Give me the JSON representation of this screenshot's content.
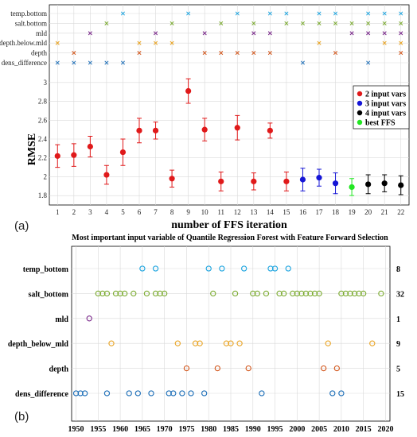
{
  "colors": {
    "red": "#e0191a",
    "blue": "#1515d6",
    "black": "#000000",
    "green": "#22e622",
    "temp_bottom": "#1ea5e0",
    "salt_bottom": "#7aaa2e",
    "mld": "#7b2a8c",
    "depth_below_mld": "#e9a424",
    "depth": "#d25317",
    "dens_difference": "#1e6fb8"
  },
  "panel_labels": {
    "a": "(a)",
    "b": "(b)"
  },
  "chart_data": [
    {
      "type": "scatter",
      "subtype": "errorbar",
      "title": "",
      "xlabel": "number of FFS iteration",
      "ylabel": "RMSE",
      "xlim": [
        0.5,
        22.5
      ],
      "ylim": [
        1.7,
        3.1
      ],
      "xticks": [
        1,
        2,
        3,
        4,
        5,
        6,
        7,
        8,
        9,
        10,
        11,
        12,
        13,
        14,
        15,
        16,
        17,
        18,
        19,
        20,
        21,
        22
      ],
      "yticks": [
        "1.8",
        "2",
        "2.2",
        "2.4",
        "2.6",
        "2.8",
        "3"
      ],
      "grid": true,
      "legend_position": "right",
      "legend": [
        {
          "label": "2 input vars",
          "color_key": "red"
        },
        {
          "label": "3 input vars",
          "color_key": "blue"
        },
        {
          "label": "4 input vars",
          "color_key": "black"
        },
        {
          "label": "best FFS",
          "color_key": "green"
        }
      ],
      "points": [
        {
          "x": 1,
          "y": 2.22,
          "err": 0.12,
          "color_key": "red"
        },
        {
          "x": 2,
          "y": 2.23,
          "err": 0.12,
          "color_key": "red"
        },
        {
          "x": 3,
          "y": 2.32,
          "err": 0.11,
          "color_key": "red"
        },
        {
          "x": 4,
          "y": 2.02,
          "err": 0.1,
          "color_key": "red"
        },
        {
          "x": 5,
          "y": 2.26,
          "err": 0.14,
          "color_key": "red"
        },
        {
          "x": 6,
          "y": 2.49,
          "err": 0.13,
          "color_key": "red"
        },
        {
          "x": 7,
          "y": 2.49,
          "err": 0.09,
          "color_key": "red"
        },
        {
          "x": 8,
          "y": 1.98,
          "err": 0.09,
          "color_key": "red"
        },
        {
          "x": 9,
          "y": 2.91,
          "err": 0.13,
          "color_key": "red"
        },
        {
          "x": 10,
          "y": 2.5,
          "err": 0.12,
          "color_key": "red"
        },
        {
          "x": 11,
          "y": 1.95,
          "err": 0.1,
          "color_key": "red"
        },
        {
          "x": 12,
          "y": 2.52,
          "err": 0.13,
          "color_key": "red"
        },
        {
          "x": 13,
          "y": 1.95,
          "err": 0.09,
          "color_key": "red"
        },
        {
          "x": 14,
          "y": 2.49,
          "err": 0.08,
          "color_key": "red"
        },
        {
          "x": 15,
          "y": 1.95,
          "err": 0.1,
          "color_key": "red"
        },
        {
          "x": 16,
          "y": 1.97,
          "err": 0.12,
          "color_key": "blue"
        },
        {
          "x": 17,
          "y": 1.99,
          "err": 0.09,
          "color_key": "blue"
        },
        {
          "x": 18,
          "y": 1.93,
          "err": 0.11,
          "color_key": "blue"
        },
        {
          "x": 19,
          "y": 1.89,
          "err": 0.09,
          "color_key": "green"
        },
        {
          "x": 20,
          "y": 1.92,
          "err": 0.1,
          "color_key": "black"
        },
        {
          "x": 21,
          "y": 1.93,
          "err": 0.09,
          "color_key": "black"
        },
        {
          "x": 22,
          "y": 1.91,
          "err": 0.1,
          "color_key": "black"
        }
      ],
      "feature_rows": [
        {
          "label": "temp.bottom",
          "color_key": "temp_bottom",
          "iterations": [
            5,
            9,
            12,
            14,
            15,
            17,
            18,
            20,
            21,
            22
          ]
        },
        {
          "label": "salt.bottom",
          "color_key": "salt_bottom",
          "iterations": [
            4,
            8,
            11,
            13,
            15,
            16,
            17,
            18,
            19,
            20,
            21,
            22
          ]
        },
        {
          "label": "mld",
          "color_key": "mld",
          "iterations": [
            3,
            7,
            10,
            13,
            14,
            19,
            20,
            21,
            22
          ]
        },
        {
          "label": "depth.below.mld",
          "color_key": "depth_below_mld",
          "iterations": [
            1,
            6,
            7,
            8,
            17,
            21,
            22
          ]
        },
        {
          "label": "depth",
          "color_key": "depth",
          "iterations": [
            2,
            6,
            10,
            11,
            12,
            13,
            14,
            18,
            22
          ]
        },
        {
          "label": "dens_difference",
          "color_key": "dens_difference",
          "iterations": [
            1,
            2,
            3,
            4,
            5,
            16,
            20
          ]
        }
      ]
    },
    {
      "type": "scatter",
      "title": "Most important input variable of Quantile Regression Forest with Feature Forward Selection",
      "xlabel": "",
      "ylabel": "",
      "xlim": [
        1949,
        2021
      ],
      "xticks": [
        1950,
        1955,
        1960,
        1965,
        1970,
        1975,
        1980,
        1985,
        1990,
        1995,
        2000,
        2005,
        2010,
        2015,
        2020
      ],
      "grid": true,
      "rows": [
        {
          "label": "temp_bottom",
          "count": "8",
          "color_key": "temp_bottom",
          "years": [
            1965,
            1968,
            1980,
            1983,
            1988,
            1994,
            1995,
            1998
          ]
        },
        {
          "label": "salt_bottom",
          "count": "32",
          "color_key": "salt_bottom",
          "years": [
            1955,
            1956,
            1957,
            1959,
            1960,
            1961,
            1963,
            1966,
            1968,
            1969,
            1970,
            1981,
            1986,
            1990,
            1991,
            1993,
            1996,
            1997,
            1999,
            2000,
            2001,
            2002,
            2003,
            2004,
            2005,
            2010,
            2011,
            2012,
            2013,
            2014,
            2015,
            2019
          ]
        },
        {
          "label": "mld",
          "count": "1",
          "color_key": "mld",
          "years": [
            1953
          ]
        },
        {
          "label": "depth_below_mld",
          "count": "9",
          "color_key": "depth_below_mld",
          "years": [
            1958,
            1973,
            1977,
            1978,
            1984,
            1985,
            1987,
            2007,
            2017
          ]
        },
        {
          "label": "depth",
          "count": "5",
          "color_key": "depth",
          "years": [
            1975,
            1982,
            1989,
            2006,
            2009
          ]
        },
        {
          "label": "dens_difference",
          "count": "15",
          "color_key": "dens_difference",
          "years": [
            1950,
            1951,
            1952,
            1957,
            1962,
            1964,
            1967,
            1971,
            1972,
            1974,
            1976,
            1979,
            1992,
            2008,
            2010
          ]
        }
      ]
    }
  ]
}
